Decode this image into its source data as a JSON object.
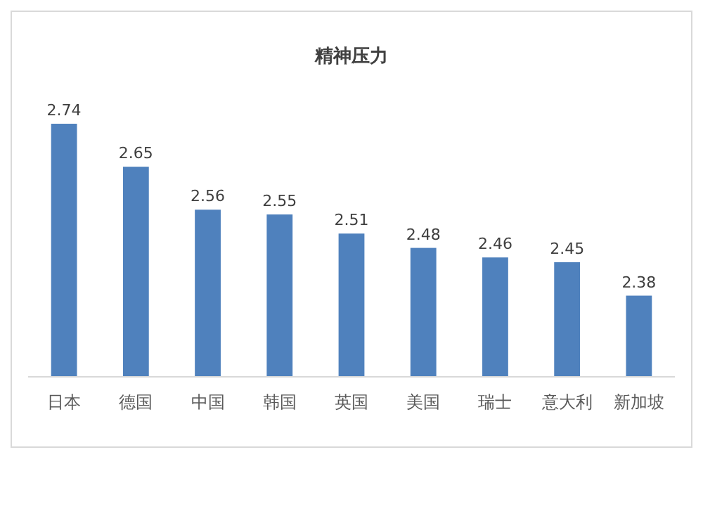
{
  "chart_data": {
    "type": "bar",
    "title": "精神压力",
    "categories": [
      "日本",
      "德国",
      "中国",
      "韩国",
      "英国",
      "美国",
      "瑞士",
      "意大利",
      "新加坡"
    ],
    "values": [
      2.74,
      2.65,
      2.56,
      2.55,
      2.51,
      2.48,
      2.46,
      2.45,
      2.38
    ],
    "color": "#4f81bd",
    "ylim": [
      2.21,
      2.74
    ],
    "data_labels": true
  }
}
